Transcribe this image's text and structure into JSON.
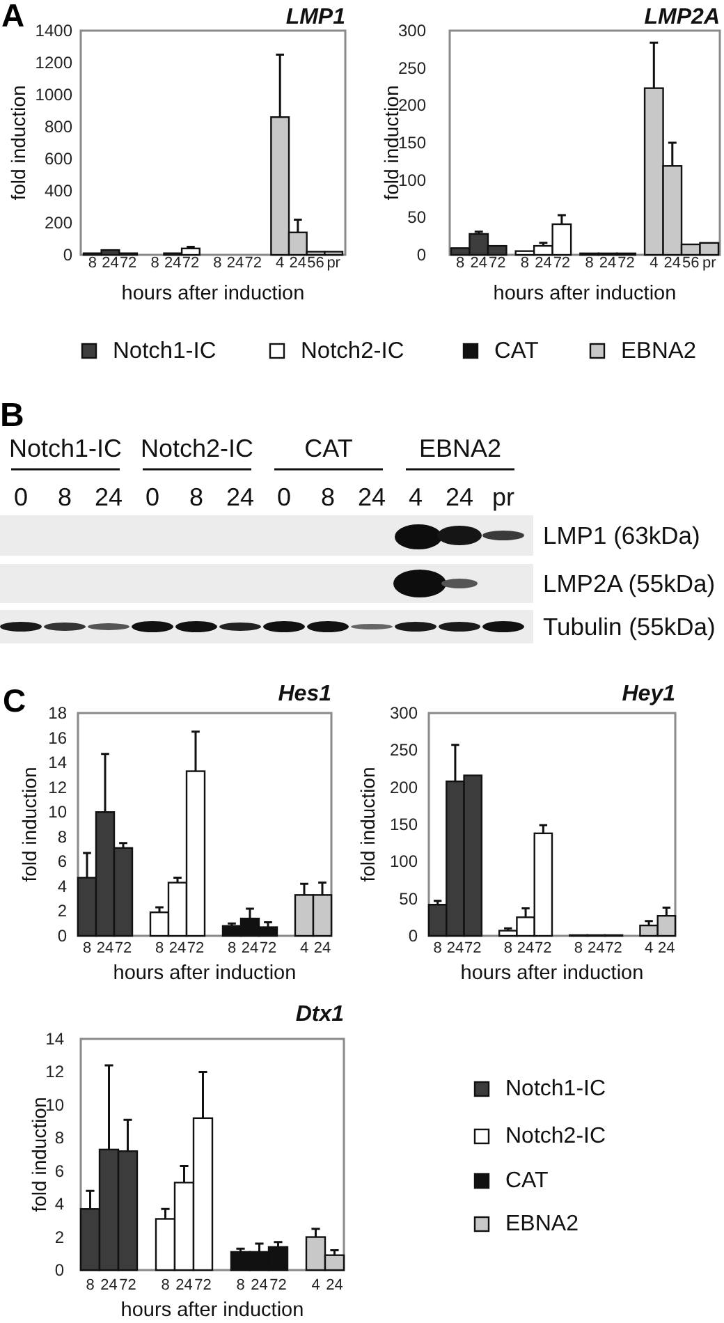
{
  "chart_data": [
    {
      "type": "bar",
      "title": "LMP1",
      "xlabel": "hours after induction",
      "ylabel": "fold induction",
      "annotations": [
        "A"
      ],
      "categories": [
        "8",
        "24",
        "72",
        null,
        "8",
        "24",
        "72",
        null,
        "8",
        "24",
        "72",
        null,
        "4",
        "24",
        "56",
        "pr"
      ],
      "stacked": true,
      "series": [
        {
          "name": "Notch1-IC",
          "color": "#3c3c3c",
          "values": [
            10,
            30,
            10,
            null,
            null,
            null,
            null,
            null,
            null,
            null,
            null,
            null,
            null,
            null,
            null,
            null
          ]
        },
        {
          "name": "Notch2-IC",
          "color": "#ffffff",
          "values": [
            null,
            null,
            null,
            null,
            0,
            10,
            40,
            null,
            null,
            null,
            null,
            null,
            null,
            null,
            null,
            null
          ],
          "errors": [
            null,
            null,
            null,
            null,
            null,
            null,
            [
              40,
              50
            ],
            null,
            null,
            null,
            null,
            null,
            null,
            null,
            null,
            null
          ]
        },
        {
          "name": "CAT",
          "color": "#111111",
          "values": [
            null,
            null,
            null,
            null,
            null,
            null,
            null,
            null,
            0,
            0,
            0,
            null,
            null,
            null,
            null,
            null
          ]
        },
        {
          "name": "EBNA2",
          "color": "#c8c8c8",
          "values": [
            null,
            null,
            null,
            null,
            null,
            null,
            null,
            null,
            null,
            null,
            null,
            null,
            860,
            140,
            20,
            20
          ],
          "errors": [
            null,
            null,
            null,
            null,
            null,
            null,
            null,
            null,
            null,
            null,
            null,
            null,
            [
              860,
              1250
            ],
            [
              140,
              220
            ],
            null,
            null
          ]
        }
      ],
      "ylim": [
        0,
        1400
      ],
      "yticks": [
        0,
        200,
        400,
        600,
        800,
        1000,
        1200,
        1400
      ],
      "legend": "bottom"
    },
    {
      "type": "bar",
      "title": "LMP2A",
      "xlabel": "hours after induction",
      "ylabel": "fold induction",
      "categories": [
        "8",
        "24",
        "72",
        null,
        "8",
        "24",
        "72",
        null,
        "8",
        "24",
        "72",
        null,
        "4",
        "24",
        "56",
        "pr"
      ],
      "stacked": true,
      "series": [
        {
          "color": "#3c3c3c",
          "values": [
            9,
            28,
            12,
            null,
            null,
            null,
            null,
            null,
            null,
            null,
            null,
            null,
            null,
            null,
            null,
            null
          ],
          "errors": [
            null,
            [
              28,
              31
            ],
            null,
            null,
            null,
            null,
            null,
            null,
            null,
            null,
            null,
            null,
            null,
            null,
            null,
            null
          ]
        },
        {
          "color": "#ffffff",
          "values": [
            null,
            null,
            null,
            null,
            5,
            12,
            41,
            null,
            null,
            null,
            null,
            null,
            null,
            null,
            null,
            null
          ],
          "errors": [
            null,
            null,
            null,
            null,
            null,
            [
              12,
              16
            ],
            [
              41,
              53
            ],
            null,
            null,
            null,
            null,
            null,
            null,
            null,
            null,
            null
          ]
        },
        {
          "color": "#111111",
          "values": [
            null,
            null,
            null,
            null,
            null,
            null,
            null,
            null,
            2,
            2,
            2,
            null,
            null,
            null,
            null,
            null
          ]
        },
        {
          "color": "#c8c8c8",
          "values": [
            null,
            null,
            null,
            null,
            null,
            null,
            null,
            null,
            null,
            null,
            null,
            null,
            223,
            119,
            14,
            16
          ],
          "errors": [
            null,
            null,
            null,
            null,
            null,
            null,
            null,
            null,
            null,
            null,
            null,
            null,
            [
              223,
              284
            ],
            [
              119,
              150
            ],
            null,
            null
          ]
        }
      ],
      "ylim": [
        0,
        300
      ],
      "yticks": [
        0,
        50,
        100,
        150,
        200,
        250,
        300
      ]
    },
    {
      "type": "other",
      "annotations": [
        "B",
        "Notch1-IC",
        "Notch2-IC",
        "CAT",
        "EBNA2",
        "LMP1 (63kDa)",
        "LMP2A (55kDa)",
        "Tubulin (55kDa)"
      ],
      "categories": [
        "0",
        "8",
        "24",
        "0",
        "8",
        "24",
        "0",
        "8",
        "24",
        "4",
        "24",
        "pr"
      ]
    },
    {
      "type": "bar",
      "title": "Hes1",
      "xlabel": "hours after induction",
      "ylabel": "fold induction",
      "annotations": [
        "C"
      ],
      "categories": [
        "8",
        "24",
        "72",
        null,
        "8",
        "24",
        "72",
        null,
        "8",
        "24",
        "72",
        null,
        "4",
        "24"
      ],
      "stacked": true,
      "series": [
        {
          "color": "#3c3c3c",
          "values": [
            4.7,
            10,
            7.1,
            null,
            null,
            null,
            null,
            null,
            null,
            null,
            null,
            null,
            null,
            null
          ],
          "errors": [
            [
              4.7,
              6.7
            ],
            [
              10,
              14.7
            ],
            [
              7.1,
              7.5
            ],
            null,
            null,
            null,
            null,
            null,
            null,
            null,
            null,
            null,
            null,
            null
          ]
        },
        {
          "color": "#ffffff",
          "values": [
            null,
            null,
            null,
            null,
            1.9,
            4.3,
            13.3,
            null,
            null,
            null,
            null,
            null,
            null,
            null
          ],
          "errors": [
            null,
            null,
            null,
            null,
            [
              1.9,
              2.3
            ],
            [
              4.3,
              4.7
            ],
            [
              13.3,
              16.5
            ],
            null,
            null,
            null,
            null,
            null,
            null,
            null
          ]
        },
        {
          "color": "#111111",
          "values": [
            null,
            null,
            null,
            null,
            null,
            null,
            null,
            null,
            0.8,
            1.4,
            0.7,
            null,
            null,
            null
          ],
          "errors": [
            null,
            null,
            null,
            null,
            null,
            null,
            null,
            null,
            [
              0.8,
              1
            ],
            [
              1.4,
              2.2
            ],
            [
              0.7,
              1.1
            ],
            null,
            null,
            null
          ]
        },
        {
          "color": "#c8c8c8",
          "values": [
            null,
            null,
            null,
            null,
            null,
            null,
            null,
            null,
            null,
            null,
            null,
            null,
            3.3,
            3.3
          ],
          "errors": [
            null,
            null,
            null,
            null,
            null,
            null,
            null,
            null,
            null,
            null,
            null,
            null,
            [
              3.3,
              4.2
            ],
            [
              3.3,
              4.3
            ]
          ]
        }
      ],
      "ylim": [
        0,
        18
      ],
      "yticks": [
        0,
        2,
        4,
        6,
        8,
        10,
        12,
        14,
        16,
        18
      ]
    },
    {
      "type": "bar",
      "title": "Hey1",
      "xlabel": "hours after induction",
      "ylabel": "fold induction",
      "categories": [
        "8",
        "24",
        "72",
        null,
        "8",
        "24",
        "72",
        null,
        "8",
        "24",
        "72",
        null,
        "4",
        "24"
      ],
      "stacked": true,
      "series": [
        {
          "color": "#3c3c3c",
          "values": [
            42,
            208,
            216,
            null,
            null,
            null,
            null,
            null,
            null,
            null,
            null,
            null,
            null,
            null
          ],
          "errors": [
            [
              42,
              47
            ],
            [
              208,
              257
            ],
            null,
            null,
            null,
            null,
            null,
            null,
            null,
            null,
            null,
            null,
            null,
            null
          ]
        },
        {
          "color": "#ffffff",
          "values": [
            null,
            null,
            null,
            null,
            7,
            25,
            138,
            null,
            null,
            null,
            null,
            null,
            null,
            null
          ],
          "errors": [
            null,
            null,
            null,
            null,
            [
              7,
              10
            ],
            [
              25,
              37
            ],
            [
              138,
              149
            ],
            null,
            null,
            null,
            null,
            null,
            null,
            null
          ]
        },
        {
          "color": "#111111",
          "values": [
            null,
            null,
            null,
            null,
            null,
            null,
            null,
            null,
            1,
            1,
            1,
            null,
            null,
            null
          ]
        },
        {
          "color": "#c8c8c8",
          "values": [
            null,
            null,
            null,
            null,
            null,
            null,
            null,
            null,
            null,
            null,
            null,
            null,
            14,
            27
          ],
          "errors": [
            null,
            null,
            null,
            null,
            null,
            null,
            null,
            null,
            null,
            null,
            null,
            null,
            [
              14,
              20
            ],
            [
              27,
              38
            ]
          ]
        }
      ],
      "ylim": [
        0,
        300
      ],
      "yticks": [
        0,
        50,
        100,
        150,
        200,
        250,
        300
      ]
    },
    {
      "type": "bar",
      "title": "Dtx1",
      "xlabel": "hours after induction",
      "ylabel": "fold induction",
      "categories": [
        "8",
        "24",
        "72",
        null,
        "8",
        "24",
        "72",
        null,
        "8",
        "24",
        "72",
        null,
        "4",
        "24"
      ],
      "stacked": true,
      "series": [
        {
          "name": "Notch1-IC",
          "color": "#3c3c3c",
          "values": [
            3.7,
            7.3,
            7.2,
            null,
            null,
            null,
            null,
            null,
            null,
            null,
            null,
            null,
            null,
            null
          ],
          "errors": [
            [
              3.7,
              4.8
            ],
            [
              7.3,
              12.4
            ],
            [
              7.2,
              9.1
            ],
            null,
            null,
            null,
            null,
            null,
            null,
            null,
            null,
            null,
            null,
            null
          ]
        },
        {
          "name": "Notch2-IC",
          "color": "#ffffff",
          "values": [
            null,
            null,
            null,
            null,
            3.1,
            5.3,
            9.2,
            null,
            null,
            null,
            null,
            null,
            null,
            null
          ],
          "errors": [
            null,
            null,
            null,
            null,
            [
              3.1,
              3.7
            ],
            [
              5.3,
              6.3
            ],
            [
              9.2,
              12
            ],
            null,
            null,
            null,
            null,
            null,
            null,
            null
          ]
        },
        {
          "name": "CAT",
          "color": "#111111",
          "values": [
            null,
            null,
            null,
            null,
            null,
            null,
            null,
            null,
            1.1,
            1.1,
            1.4,
            null,
            null,
            null
          ],
          "errors": [
            null,
            null,
            null,
            null,
            null,
            null,
            null,
            null,
            [
              1.1,
              1.3
            ],
            [
              1.1,
              1.6
            ],
            [
              1.4,
              1.7
            ],
            null,
            null,
            null
          ]
        },
        {
          "name": "EBNA2",
          "color": "#c8c8c8",
          "values": [
            null,
            null,
            null,
            null,
            null,
            null,
            null,
            null,
            null,
            null,
            null,
            null,
            2,
            0.9
          ],
          "errors": [
            null,
            null,
            null,
            null,
            null,
            null,
            null,
            null,
            null,
            null,
            null,
            null,
            [
              2,
              2.5
            ],
            [
              0.9,
              1.2
            ]
          ]
        }
      ],
      "ylim": [
        0,
        14
      ],
      "yticks": [
        0,
        2,
        4,
        6,
        8,
        10,
        12,
        14
      ],
      "legend": "right"
    }
  ]
}
